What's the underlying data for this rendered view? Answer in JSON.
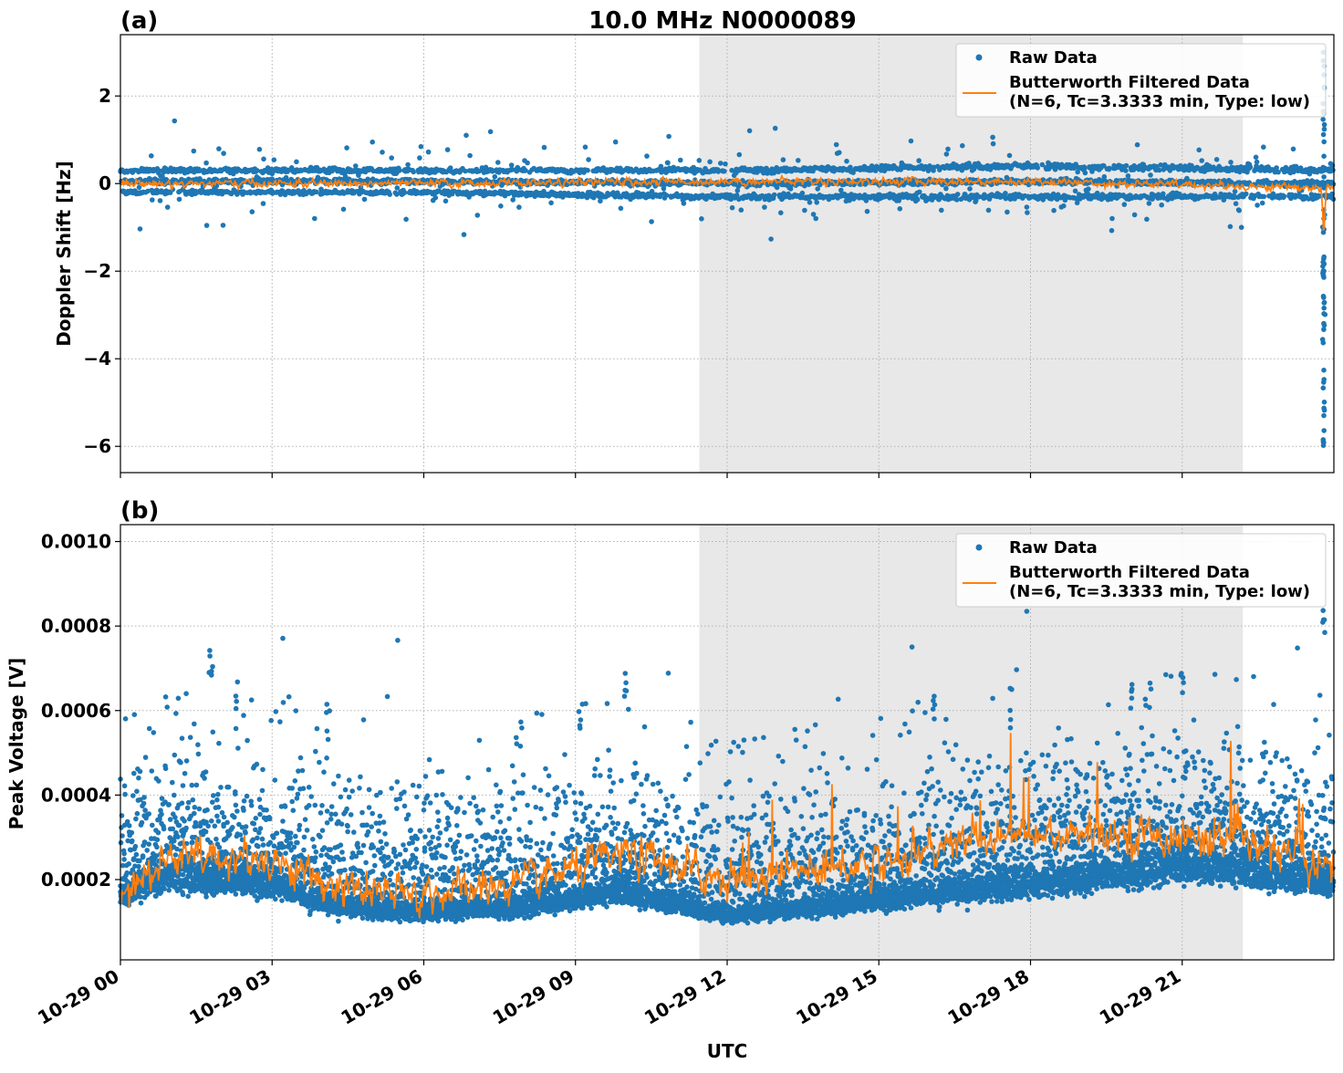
{
  "title": "10.0 MHz N0000089",
  "colors": {
    "raw": "#1f77b4",
    "filtered": "#ff7f0e",
    "shade": "#e8e8e8",
    "grid": "#b0b0b0"
  },
  "x_axis": {
    "label": "UTC",
    "range_hours": [
      0,
      24
    ],
    "ticks": [
      {
        "hour": 0,
        "label": "10-29 00"
      },
      {
        "hour": 3,
        "label": "10-29 03"
      },
      {
        "hour": 6,
        "label": "10-29 06"
      },
      {
        "hour": 9,
        "label": "10-29 09"
      },
      {
        "hour": 12,
        "label": "10-29 12"
      },
      {
        "hour": 15,
        "label": "10-29 15"
      },
      {
        "hour": 18,
        "label": "10-29 18"
      },
      {
        "hour": 21,
        "label": "10-29 21"
      }
    ]
  },
  "chart_data": [
    {
      "type": "scatter",
      "panel_label": "(a)",
      "title": "10.0 MHz N0000089",
      "ylabel": "Doppler Shift [Hz]",
      "xlabel": "",
      "xlim_hours": [
        0,
        24
      ],
      "ylim": [
        -6.6,
        3.4
      ],
      "yticks": [
        {
          "v": 2,
          "label": "2"
        },
        {
          "v": 0,
          "label": "0"
        },
        {
          "v": -2,
          "label": "−2"
        },
        {
          "v": -4,
          "label": "−4"
        },
        {
          "v": -6,
          "label": "−6"
        }
      ],
      "shaded_span_hours": [
        11.45,
        22.2
      ],
      "grid": true,
      "legend_position": "upper-right",
      "legend": {
        "raw": "Raw Data",
        "filtered_line1": "Butterworth Filtered Data",
        "filtered_line2": "(N=6, Tc=3.3333 min, Type: low)"
      },
      "series": [
        {
          "name": "Raw Data",
          "kind": "points",
          "band_keypoints": [
            [
              0,
              -0.2,
              0.3
            ],
            [
              6,
              -0.2,
              0.3
            ],
            [
              12,
              -0.3,
              0.3
            ],
            [
              18,
              -0.3,
              0.4
            ],
            [
              24,
              -0.3,
              0.3
            ]
          ],
          "outlier_spread": 0.8,
          "spike": {
            "hour": 23.8,
            "min": -6.1,
            "max": 3.0
          }
        },
        {
          "name": "Butterworth Filtered Data",
          "kind": "line",
          "keypoints": [
            [
              0,
              0.0
            ],
            [
              6,
              0.0
            ],
            [
              12,
              0.05
            ],
            [
              18,
              0.05
            ],
            [
              23.75,
              -0.1
            ],
            [
              23.8,
              -1.2
            ],
            [
              23.85,
              -0.1
            ],
            [
              24,
              -0.1
            ]
          ],
          "noise": 0.15
        }
      ]
    },
    {
      "type": "scatter",
      "panel_label": "(b)",
      "ylabel": "Peak Voltage [V]",
      "xlabel": "UTC",
      "xlim_hours": [
        0,
        24
      ],
      "ylim": [
        1e-05,
        0.00104
      ],
      "yticks": [
        {
          "v": 0.001,
          "label": "0.0010"
        },
        {
          "v": 0.0008,
          "label": "0.0008"
        },
        {
          "v": 0.0006,
          "label": "0.0006"
        },
        {
          "v": 0.0004,
          "label": "0.0004"
        },
        {
          "v": 0.0002,
          "label": "0.0002"
        }
      ],
      "shaded_span_hours": [
        11.45,
        22.2
      ],
      "grid": true,
      "legend_position": "upper-right",
      "legend": {
        "raw": "Raw Data",
        "filtered_line1": "Butterworth Filtered Data",
        "filtered_line2": "(N=6, Tc=3.3333 min, Type: low)"
      },
      "series": [
        {
          "name": "Raw Data",
          "kind": "points",
          "base_keypoints": [
            [
              0,
              0.00017
            ],
            [
              1,
              0.00022
            ],
            [
              3,
              0.0002
            ],
            [
              4,
              0.00015
            ],
            [
              5.5,
              0.00013
            ],
            [
              8,
              0.00014
            ],
            [
              10,
              0.00018
            ],
            [
              12,
              0.00012
            ],
            [
              15,
              0.00016
            ],
            [
              18,
              0.0002
            ],
            [
              21,
              0.00024
            ],
            [
              23,
              0.00022
            ],
            [
              24,
              0.0002
            ]
          ],
          "upper_spread": 0.00025,
          "peak_outliers": [
            [
              1.8,
              0.00076
            ],
            [
              2.3,
              0.00067
            ],
            [
              4.1,
              0.00062
            ],
            [
              9.1,
              0.00062
            ],
            [
              10.0,
              0.00069
            ],
            [
              16.1,
              0.00066
            ],
            [
              17.6,
              0.00066
            ],
            [
              20.0,
              0.0007
            ],
            [
              21.0,
              0.00069
            ],
            [
              23.8,
              0.00084
            ]
          ]
        },
        {
          "name": "Butterworth Filtered Data",
          "kind": "line",
          "keypoints": [
            [
              0,
              0.00018
            ],
            [
              1,
              0.00025
            ],
            [
              3,
              0.00025
            ],
            [
              4,
              0.00019
            ],
            [
              5.5,
              0.00016
            ],
            [
              8,
              0.00019
            ],
            [
              10,
              0.00026
            ],
            [
              12,
              0.0002
            ],
            [
              15,
              0.00024
            ],
            [
              17,
              0.0003
            ],
            [
              20,
              0.00031
            ],
            [
              22,
              0.00029
            ],
            [
              24,
              0.00023
            ]
          ],
          "noise": 4e-05
        }
      ]
    }
  ]
}
